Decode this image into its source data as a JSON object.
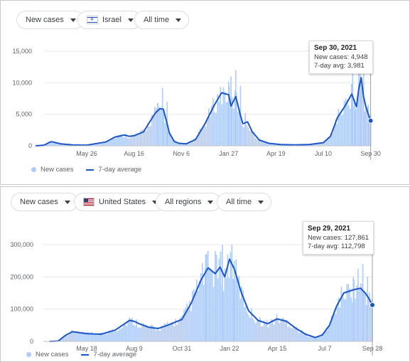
{
  "panels": [
    {
      "controls": {
        "metric": "New cases",
        "location": "Israel",
        "range": "All time"
      },
      "tooltip": {
        "date": "Sep 30, 2021",
        "new_cases": "New cases: 4,948",
        "avg": "7-day avg: 3,981"
      },
      "legend": {
        "bars": "New cases",
        "line": "7-day average"
      }
    },
    {
      "controls": {
        "metric": "New cases",
        "location": "United States",
        "range_region": "All regions",
        "range": "All time"
      },
      "tooltip": {
        "date": "Sep 29, 2021",
        "new_cases": "New cases: 127,861",
        "avg": "7-day avg: 112,798"
      },
      "legend": {
        "bars": "New cases",
        "line": "7-day average"
      }
    }
  ],
  "colors": {
    "bars": "#aecbfa",
    "line": "#1a56c9",
    "grid": "#e8eaed"
  },
  "chart_data": [
    {
      "type": "area",
      "location": "Israel",
      "y_ticks": [
        "0",
        "5,000",
        "10,000",
        "15,000"
      ],
      "ylim": [
        0,
        15000
      ],
      "x_tick_labels": [
        "May 26",
        "Aug 16",
        "Nov 6",
        "Jan 27",
        "Apr 19",
        "Jul 10",
        "Sep 30"
      ],
      "xlim": [
        -1.08,
        6
      ],
      "series": [
        {
          "name": "7-day average",
          "x": [
            -1.08,
            -0.9,
            -0.8,
            -0.75,
            -0.65,
            -0.55,
            -0.3,
            0,
            0.4,
            0.6,
            0.8,
            0.9,
            1.0,
            1.2,
            1.35,
            1.45,
            1.55,
            1.62,
            1.7,
            1.75,
            1.85,
            1.95,
            2.1,
            2.3,
            2.5,
            2.7,
            2.85,
            3.0,
            3.05,
            3.15,
            3.25,
            3.3,
            3.4,
            3.5,
            3.65,
            3.85,
            4.1,
            4.4,
            4.7,
            5.0,
            5.15,
            5.3,
            5.45,
            5.6,
            5.7,
            5.75,
            5.8,
            5.85,
            5.9,
            5.95,
            6.0
          ],
          "y": [
            0,
            100,
            500,
            650,
            500,
            300,
            150,
            100,
            600,
            1400,
            1700,
            1500,
            1600,
            2200,
            4000,
            5200,
            5900,
            5800,
            3500,
            2000,
            700,
            400,
            300,
            1000,
            3500,
            6500,
            8400,
            8100,
            6300,
            7800,
            4800,
            3500,
            3800,
            2200,
            900,
            400,
            200,
            150,
            200,
            500,
            1500,
            4500,
            6200,
            8200,
            6200,
            9000,
            10800,
            7800,
            6200,
            5000,
            3981
          ]
        },
        {
          "name": "New cases",
          "x": [
            1.5,
            1.6,
            1.7,
            3.0,
            3.05,
            3.15,
            3.25,
            3.35,
            5.62,
            5.67,
            5.75,
            5.8,
            5.85,
            5.9,
            5.95,
            6.0
          ],
          "y": [
            6800,
            9200,
            7000,
            10200,
            11000,
            12000,
            9500,
            5200,
            12500,
            5600,
            11800,
            9000,
            13500,
            6400,
            6500,
            4948
          ]
        }
      ]
    },
    {
      "type": "area",
      "location": "United States",
      "y_ticks": [
        "0",
        "100,000",
        "200,000",
        "300,000"
      ],
      "ylim": [
        0,
        300000
      ],
      "x_tick_labels": [
        "May 18",
        "Aug 9",
        "Oct 31",
        "Jan 22",
        "Apr 15",
        "Jul 7",
        "Sep 28"
      ],
      "xlim": [
        -0.78,
        6
      ],
      "series": [
        {
          "name": "7-day average",
          "x": [
            -0.78,
            -0.6,
            -0.45,
            -0.3,
            0,
            0.3,
            0.6,
            0.8,
            0.9,
            1.0,
            1.1,
            1.3,
            1.5,
            1.7,
            2.0,
            2.2,
            2.4,
            2.55,
            2.7,
            2.8,
            2.9,
            3.0,
            3.1,
            3.25,
            3.4,
            3.6,
            3.8,
            4.0,
            4.2,
            4.4,
            4.6,
            4.8,
            4.95,
            5.1,
            5.25,
            5.4,
            5.6,
            5.75,
            5.85,
            5.92,
            6.0
          ],
          "y": [
            0,
            1000,
            18000,
            30000,
            24000,
            22000,
            35000,
            55000,
            65000,
            62000,
            55000,
            44000,
            40000,
            50000,
            68000,
            120000,
            190000,
            228000,
            210000,
            230000,
            200000,
            255000,
            225000,
            150000,
            95000,
            65000,
            55000,
            70000,
            62000,
            40000,
            22000,
            12000,
            20000,
            50000,
            110000,
            150000,
            160000,
            165000,
            150000,
            135000,
            112798
          ]
        },
        {
          "name": "New cases",
          "x": [
            2.5,
            2.7,
            2.85,
            3.05,
            3.1,
            5.6,
            5.7,
            5.8,
            5.9,
            6.0
          ],
          "y": [
            270000,
            280000,
            300000,
            300000,
            250000,
            200000,
            225000,
            240000,
            200000,
            127861
          ]
        }
      ]
    }
  ]
}
